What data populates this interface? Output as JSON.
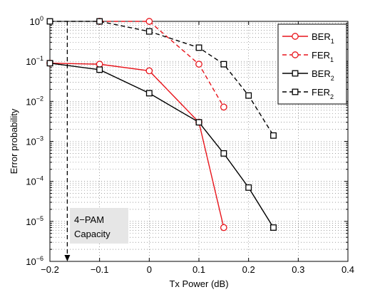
{
  "chart_data": {
    "type": "line",
    "title": "",
    "xlabel": "Tx Power (dB)",
    "ylabel": "Error probability",
    "xlim": [
      -0.2,
      0.4
    ],
    "ylim_exponent": [
      -6,
      0
    ],
    "yscale": "log",
    "grid": true,
    "legend_placement": "top-right",
    "x_ticks": [
      "−0.2",
      "−0.1",
      "0",
      "0.1",
      "0.2",
      "0.3",
      "0.4"
    ],
    "x_tick_values": [
      -0.2,
      -0.1,
      0,
      0.1,
      0.2,
      0.3,
      0.4
    ],
    "y_tick_exponents": [
      0,
      -1,
      -2,
      -3,
      -4,
      -5,
      -6
    ],
    "y_tick_base": "10",
    "y_tick_sup": [
      "0",
      "−1",
      "−2",
      "−3",
      "−4",
      "−5",
      "−6"
    ],
    "series": [
      {
        "name": "BER",
        "name_sub": "1",
        "color": "#e8141b",
        "dashed": false,
        "marker": "circle",
        "x": [
          -0.2,
          -0.1,
          0,
          0.1,
          0.15
        ],
        "y": [
          0.09,
          0.085,
          0.058,
          0.003,
          7e-06
        ]
      },
      {
        "name": "FER",
        "name_sub": "1",
        "color": "#e8141b",
        "dashed": true,
        "marker": "circle",
        "x": [
          -0.1,
          0,
          0.1,
          0.15
        ],
        "y": [
          1.0,
          1.0,
          0.085,
          0.0072
        ]
      },
      {
        "name": "BER",
        "name_sub": "2",
        "color": "#000000",
        "dashed": false,
        "marker": "square",
        "x": [
          -0.2,
          -0.1,
          0,
          0.1,
          0.15,
          0.2,
          0.25
        ],
        "y": [
          0.09,
          0.062,
          0.016,
          0.003,
          0.0005,
          7e-05,
          7e-06
        ]
      },
      {
        "name": "FER",
        "name_sub": "2",
        "color": "#000000",
        "dashed": true,
        "marker": "square",
        "x": [
          -0.2,
          -0.1,
          0,
          0.1,
          0.15,
          0.2,
          0.25
        ],
        "y": [
          1.0,
          1.0,
          0.56,
          0.22,
          0.085,
          0.014,
          0.0014
        ]
      }
    ],
    "annotation": {
      "lines": [
        "4−PAM",
        "Capacity"
      ],
      "arrow_x": -0.165,
      "arrow_from_y": 1.0,
      "arrow_to_y": 1e-06
    }
  }
}
